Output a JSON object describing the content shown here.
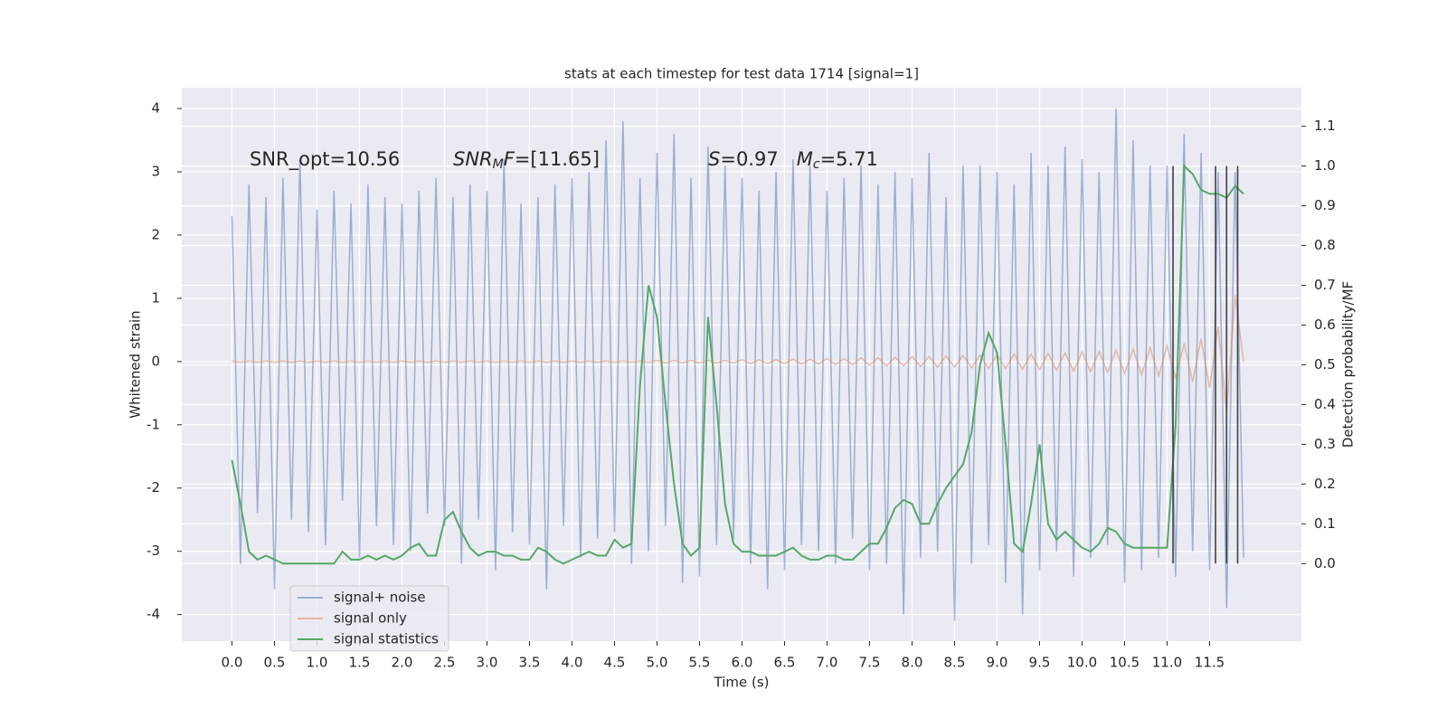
{
  "chart_data": {
    "type": "line",
    "title": "stats at each timestep for test data 1714 [signal=1]",
    "xlabel": "Time (s)",
    "ylabel": "Whitened strain",
    "y2label": "Detection probability/MF",
    "xlim": [
      -0.59,
      12.58
    ],
    "ylim": [
      -4.42,
      4.33
    ],
    "y2lim": [
      -0.195,
      1.197
    ],
    "xticks": [
      {
        "value": 0,
        "label": "0.0"
      },
      0.5,
      {
        "value": 1,
        "label": "1.0"
      },
      1.5,
      {
        "value": 2,
        "label": "2.0"
      },
      2.5,
      {
        "value": 3,
        "label": "3.0"
      },
      3.5,
      {
        "value": 4,
        "label": "4.0"
      },
      4.5,
      {
        "value": 5,
        "label": "5.0"
      },
      5.5,
      {
        "value": 6,
        "label": "6.0"
      },
      6.5,
      {
        "value": 7,
        "label": "7.0"
      },
      7.5,
      {
        "value": 8,
        "label": "8.0"
      },
      8.5,
      {
        "value": 9,
        "label": "9.0"
      },
      9.5,
      {
        "value": 10,
        "label": "10.0"
      },
      10.5,
      {
        "value": 11,
        "label": "11.0"
      },
      11.5
    ],
    "yticks": [
      -4,
      -3,
      -2,
      -1,
      0,
      1,
      2,
      3,
      4
    ],
    "y2ticks": [
      {
        "value": 0,
        "label": "0.0"
      },
      0.1,
      0.2,
      0.3,
      0.4,
      0.5,
      0.6,
      0.7,
      0.8,
      0.9,
      {
        "value": 1,
        "label": "1.0"
      },
      1.1
    ],
    "grid": true,
    "legend": "lower left",
    "annotations": [
      [
        {
          "t": "SNR_opt=10.56",
          "style": "normal"
        }
      ],
      [
        {
          "t": "SNR",
          "style": "italic"
        },
        {
          "t": "M",
          "style": "sub"
        },
        {
          "t": "F",
          "style": "italic"
        },
        {
          "t": "=[11.65]",
          "style": "normal"
        }
      ],
      [
        {
          "t": "S",
          "style": "italic"
        },
        {
          "t": "=0.97   ",
          "style": "normal"
        },
        {
          "t": "M",
          "style": "italic"
        },
        {
          "t": "c",
          "style": "sub"
        },
        {
          "t": "=5.71",
          "style": "normal"
        }
      ]
    ],
    "vlines": [
      11.07,
      11.57,
      11.7,
      11.83
    ],
    "vline_range": [
      0,
      1
    ],
    "vline_color": "#404040",
    "x": [
      0.0,
      0.1,
      0.2,
      0.3,
      0.4,
      0.5,
      0.6,
      0.7,
      0.8,
      0.9,
      1.0,
      1.1,
      1.2,
      1.3,
      1.4,
      1.5,
      1.6,
      1.7,
      1.8,
      1.9,
      2.0,
      2.1,
      2.2,
      2.3,
      2.4,
      2.5,
      2.6,
      2.7,
      2.8,
      2.9,
      3.0,
      3.1,
      3.2,
      3.3,
      3.4,
      3.5,
      3.6,
      3.7,
      3.8,
      3.9,
      4.0,
      4.1,
      4.2,
      4.3,
      4.4,
      4.5,
      4.6,
      4.7,
      4.8,
      4.9,
      5.0,
      5.1,
      5.2,
      5.3,
      5.4,
      5.5,
      5.6,
      5.7,
      5.8,
      5.9,
      6.0,
      6.1,
      6.2,
      6.3,
      6.4,
      6.5,
      6.6,
      6.7,
      6.8,
      6.9,
      7.0,
      7.1,
      7.2,
      7.3,
      7.4,
      7.5,
      7.6,
      7.7,
      7.8,
      7.9,
      8.0,
      8.1,
      8.2,
      8.3,
      8.4,
      8.5,
      8.6,
      8.7,
      8.8,
      8.9,
      9.0,
      9.1,
      9.2,
      9.3,
      9.4,
      9.5,
      9.6,
      9.7,
      9.8,
      9.9,
      10.0,
      10.1,
      10.2,
      10.3,
      10.4,
      10.5,
      10.6,
      10.7,
      10.8,
      10.9,
      11.0,
      11.1,
      11.2,
      11.3,
      11.4,
      11.5,
      11.6,
      11.7,
      11.8,
      11.9
    ],
    "series": [
      {
        "name": "signal+ noise",
        "color": "#4c72b0",
        "opacity": 0.5,
        "axis": "y",
        "values": [
          2.3,
          -3.2,
          2.8,
          -2.4,
          2.6,
          -3.6,
          2.9,
          -2.5,
          3.2,
          -2.7,
          2.4,
          -2.9,
          2.7,
          -2.2,
          2.5,
          -3.1,
          2.8,
          -2.6,
          2.6,
          -2.9,
          2.5,
          -3.0,
          2.7,
          -2.4,
          2.9,
          -2.6,
          2.6,
          -3.2,
          2.8,
          -2.5,
          2.7,
          -3.3,
          3.2,
          -2.7,
          2.5,
          -2.9,
          2.6,
          -3.6,
          2.8,
          -2.6,
          2.9,
          -3.1,
          3.0,
          -2.8,
          3.5,
          -2.7,
          3.8,
          -3.2,
          2.9,
          -3.0,
          3.3,
          -2.6,
          3.6,
          -3.5,
          2.9,
          -3.4,
          3.4,
          -2.9,
          3.1,
          -2.8,
          2.9,
          -3.2,
          2.7,
          -3.6,
          3.0,
          -3.3,
          3.2,
          -2.9,
          3.1,
          -3.0,
          2.7,
          -3.2,
          2.9,
          -2.8,
          3.1,
          -3.3,
          2.8,
          -3.2,
          3.0,
          -4.0,
          2.9,
          -3.1,
          3.3,
          -3.0,
          2.6,
          -4.1,
          3.1,
          -3.2,
          3.1,
          -2.9,
          3.0,
          -3.5,
          2.8,
          -4.0,
          3.3,
          -3.3,
          3.1,
          -3.0,
          3.4,
          -3.4,
          3.2,
          -3.1,
          3.0,
          -2.9,
          4.0,
          -3.5,
          3.5,
          -3.3,
          3.1,
          -3.1,
          3.1,
          -3.4,
          3.6,
          -3.0,
          3.3,
          -3.3,
          3.0,
          -3.9,
          3.0,
          -3.1
        ]
      },
      {
        "name": "signal only",
        "color": "#dd8452",
        "opacity": 0.5,
        "axis": "y",
        "values": [
          0.01,
          -0.01,
          0.01,
          -0.01,
          0.01,
          -0.01,
          0.01,
          -0.01,
          0.01,
          -0.01,
          0.01,
          -0.01,
          0.01,
          -0.01,
          0.01,
          -0.01,
          0.01,
          -0.01,
          0.01,
          -0.01,
          0.01,
          -0.01,
          0.01,
          -0.01,
          0.01,
          -0.01,
          0.01,
          -0.01,
          0.01,
          -0.01,
          0.01,
          -0.01,
          0.01,
          -0.01,
          0.01,
          -0.01,
          0.01,
          -0.01,
          0.01,
          -0.01,
          0.01,
          -0.01,
          0.01,
          -0.01,
          0.01,
          -0.01,
          0.01,
          -0.01,
          0.01,
          -0.01,
          0.02,
          -0.02,
          0.02,
          -0.02,
          0.02,
          -0.02,
          0.02,
          -0.02,
          0.02,
          -0.02,
          0.03,
          -0.03,
          0.03,
          -0.03,
          0.03,
          -0.03,
          0.04,
          -0.04,
          0.04,
          -0.04,
          0.05,
          -0.05,
          0.05,
          -0.05,
          0.06,
          -0.06,
          0.06,
          -0.07,
          0.07,
          -0.07,
          0.08,
          -0.08,
          0.08,
          -0.09,
          0.09,
          -0.09,
          0.1,
          -0.1,
          0.1,
          -0.11,
          0.11,
          -0.11,
          0.12,
          -0.12,
          0.12,
          -0.13,
          0.13,
          -0.14,
          0.14,
          -0.15,
          0.15,
          -0.16,
          0.16,
          -0.17,
          0.18,
          -0.19,
          0.2,
          -0.21,
          0.22,
          -0.23,
          0.25,
          -0.27,
          0.29,
          -0.32,
          0.36,
          -0.42,
          0.55,
          -0.8,
          1.05,
          0.0
        ]
      },
      {
        "name": "signal statistics",
        "color": "#55a868",
        "opacity": 1,
        "axis": "y2",
        "values": [
          0.26,
          0.15,
          0.03,
          0.01,
          0.02,
          0.01,
          0.0,
          0.0,
          0.0,
          0.0,
          0.0,
          0.0,
          0.0,
          0.03,
          0.01,
          0.01,
          0.02,
          0.01,
          0.02,
          0.01,
          0.02,
          0.04,
          0.05,
          0.02,
          0.02,
          0.11,
          0.13,
          0.08,
          0.04,
          0.02,
          0.03,
          0.03,
          0.02,
          0.02,
          0.01,
          0.01,
          0.04,
          0.03,
          0.01,
          0.0,
          0.01,
          0.02,
          0.03,
          0.02,
          0.02,
          0.06,
          0.04,
          0.05,
          0.45,
          0.7,
          0.62,
          0.4,
          0.2,
          0.05,
          0.02,
          0.04,
          0.62,
          0.4,
          0.15,
          0.05,
          0.03,
          0.03,
          0.02,
          0.02,
          0.02,
          0.03,
          0.04,
          0.02,
          0.01,
          0.01,
          0.02,
          0.02,
          0.01,
          0.01,
          0.03,
          0.05,
          0.05,
          0.09,
          0.14,
          0.16,
          0.15,
          0.1,
          0.1,
          0.15,
          0.19,
          0.22,
          0.25,
          0.33,
          0.5,
          0.58,
          0.53,
          0.3,
          0.05,
          0.03,
          0.15,
          0.3,
          0.1,
          0.06,
          0.08,
          0.06,
          0.04,
          0.03,
          0.05,
          0.09,
          0.08,
          0.05,
          0.04,
          0.04,
          0.04,
          0.04,
          0.04,
          0.35,
          1.0,
          0.98,
          0.94,
          0.93,
          0.93,
          0.92,
          0.95,
          0.93
        ]
      }
    ]
  }
}
